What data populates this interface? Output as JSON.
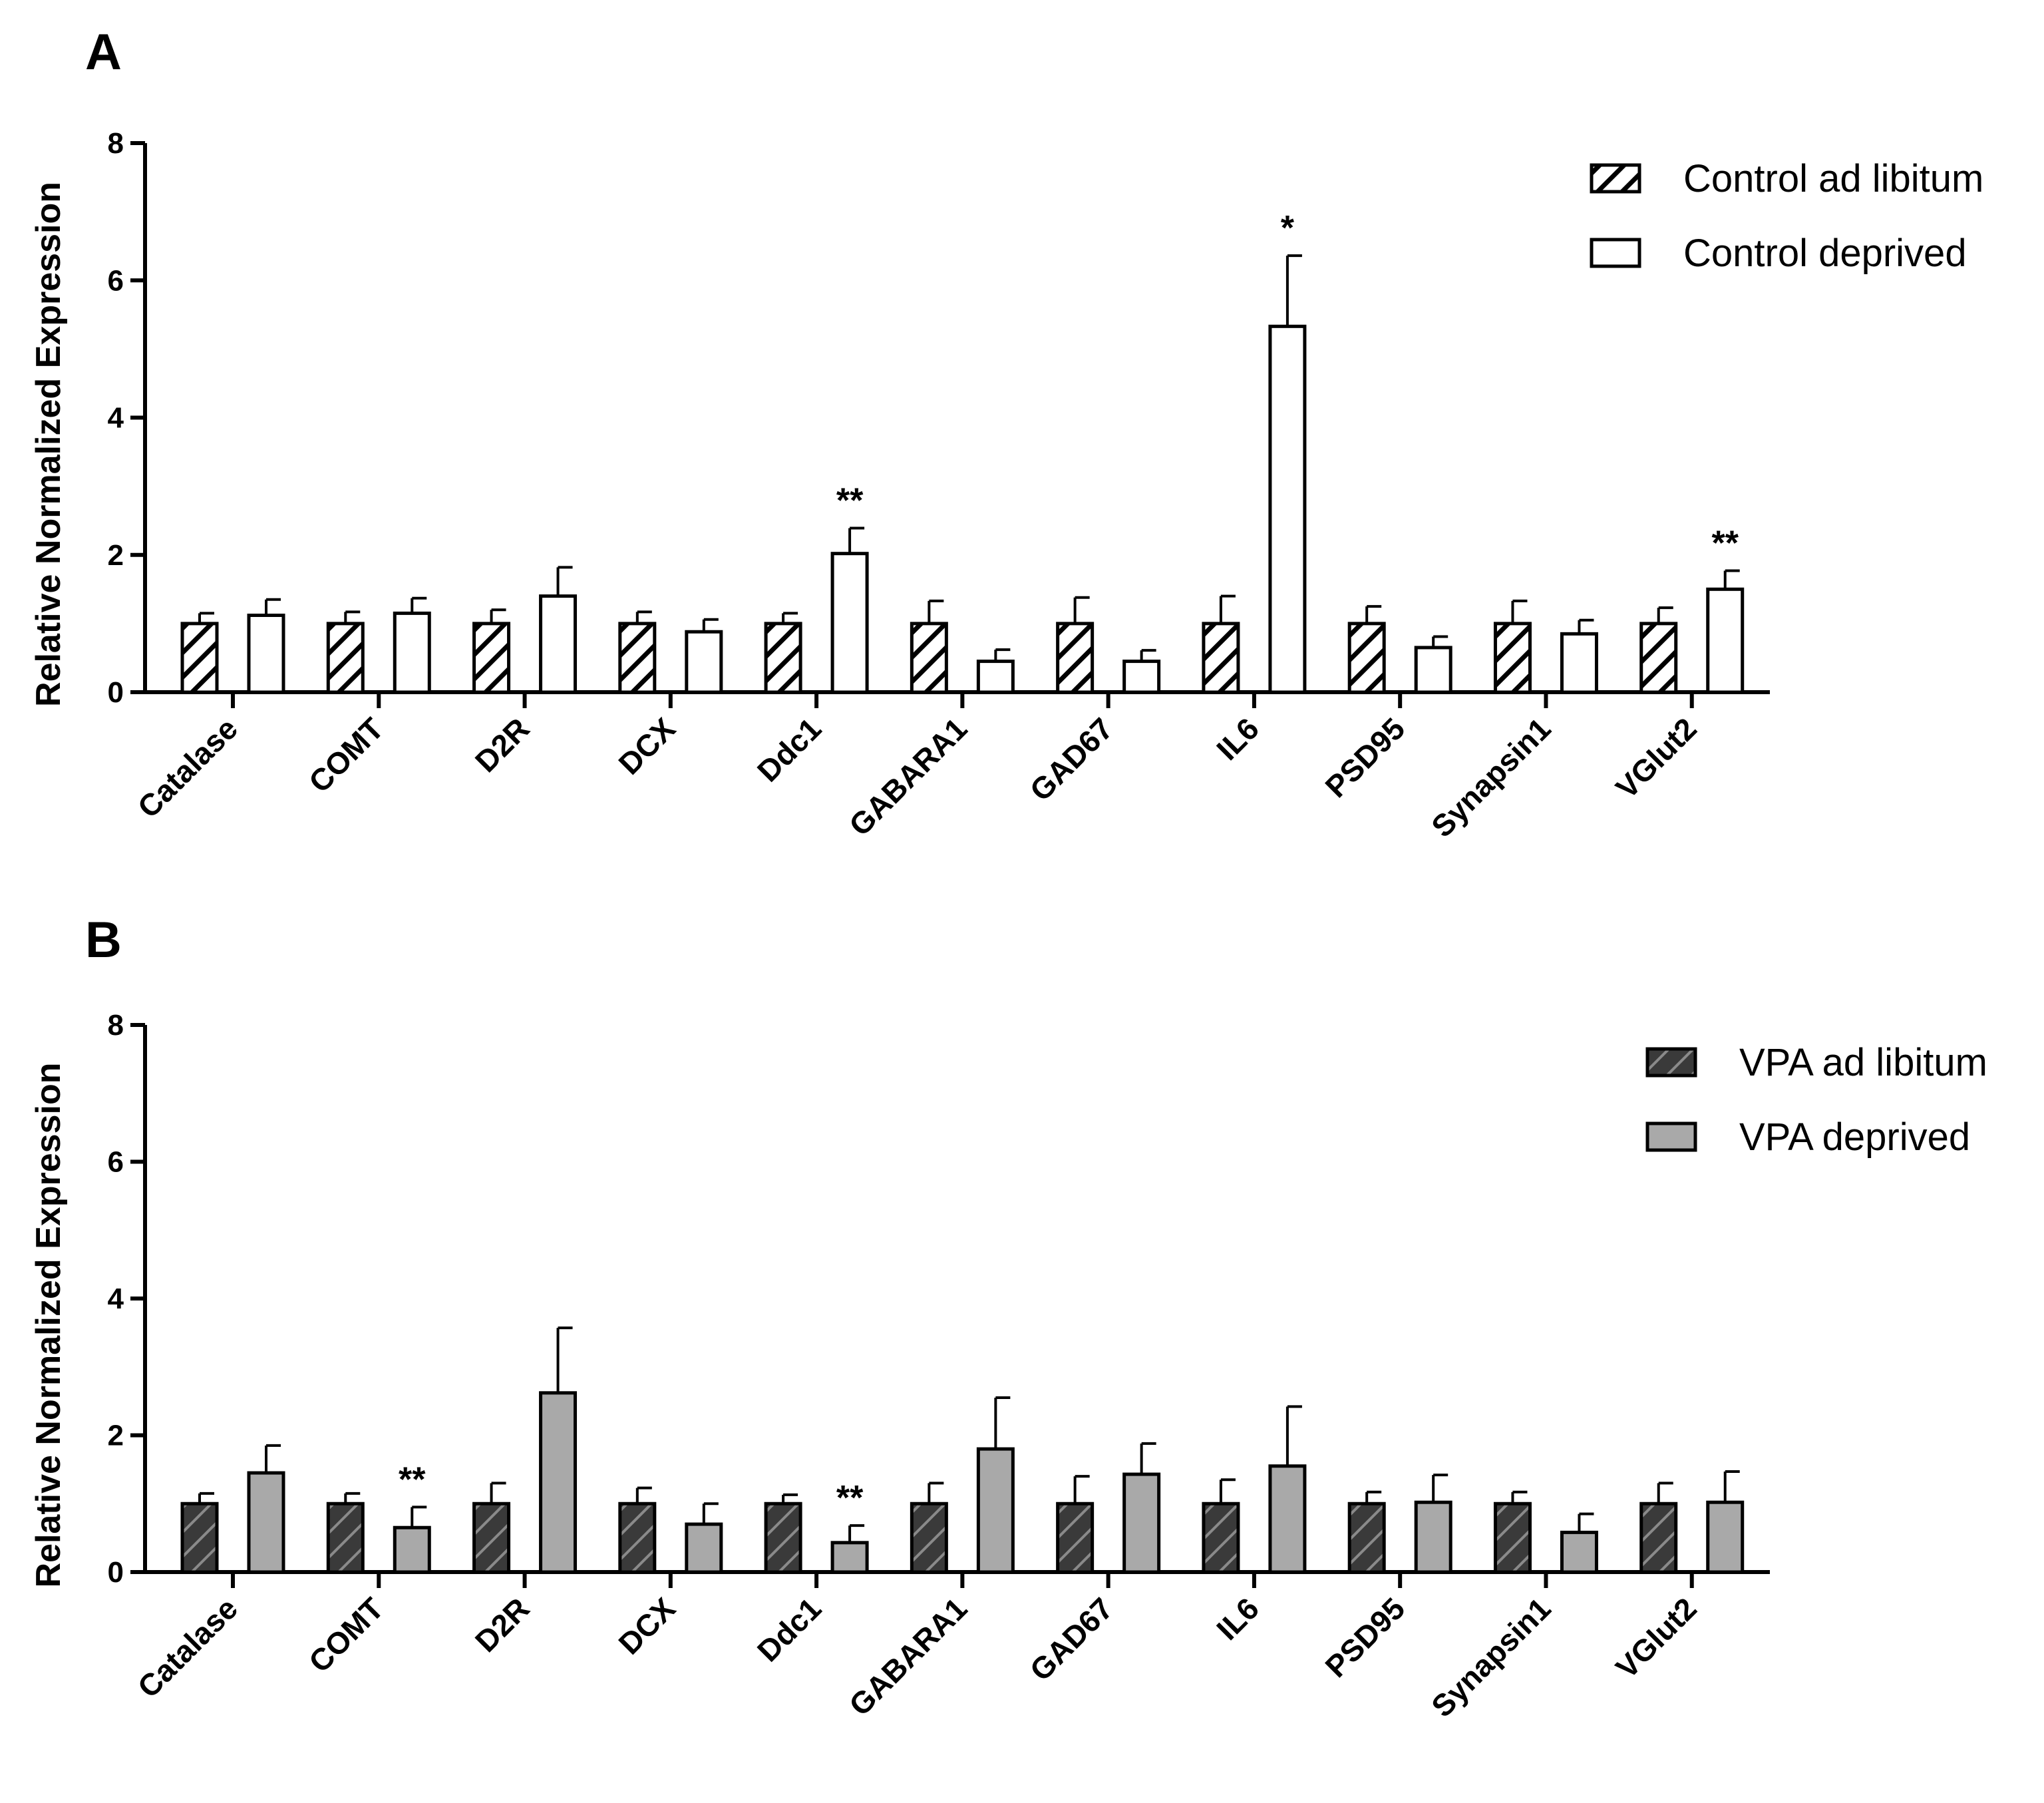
{
  "figure": {
    "panels": [
      "A",
      "B"
    ]
  },
  "colors": {
    "axis": "#000000",
    "control_ad_libitum_fill": "#ffffff",
    "control_deprived_fill": "#ffffff",
    "vpa_ad_libitum_fill": "#3a3a3a",
    "vpa_deprived_fill": "#a9a9a9",
    "hatch_stroke_light": "#000000",
    "hatch_stroke_dark": "#8a8a8a"
  },
  "chart_data": [
    {
      "panel": "A",
      "type": "bar",
      "title": "",
      "xlabel": "",
      "ylabel": "Relative Normalized Expression",
      "ylim": [
        0,
        8
      ],
      "yticks": [
        "0",
        "2",
        "4",
        "6",
        "8"
      ],
      "legend_position": "top-right",
      "categories": [
        "Catalase",
        "COMT",
        "D2R",
        "DCX",
        "Ddc1",
        "GABARA1",
        "GAD67",
        "IL6",
        "PSD95",
        "Synapsin1",
        "VGlut2"
      ],
      "series": [
        {
          "name": "Control ad libitum",
          "pattern": "hatched-light",
          "values": [
            1.0,
            1.0,
            1.0,
            1.0,
            1.0,
            1.0,
            1.0,
            1.0,
            1.0,
            1.0,
            1.0
          ],
          "errors": [
            0.15,
            0.17,
            0.2,
            0.17,
            0.15,
            0.33,
            0.38,
            0.4,
            0.25,
            0.33,
            0.23
          ]
        },
        {
          "name": "Control deprived",
          "pattern": "open",
          "values": [
            1.12,
            1.15,
            1.4,
            0.88,
            2.02,
            0.45,
            0.45,
            5.33,
            0.65,
            0.85,
            1.5
          ],
          "errors": [
            0.23,
            0.22,
            0.42,
            0.18,
            0.37,
            0.17,
            0.16,
            1.03,
            0.16,
            0.2,
            0.27
          ]
        }
      ],
      "significance": [
        {
          "category": "Ddc1",
          "label": "**"
        },
        {
          "category": "IL6",
          "label": "*"
        },
        {
          "category": "VGlut2",
          "label": "**"
        }
      ]
    },
    {
      "panel": "B",
      "type": "bar",
      "title": "",
      "xlabel": "",
      "ylabel": "Relative Normalized Expression",
      "ylim": [
        0,
        8
      ],
      "yticks": [
        "0",
        "2",
        "4",
        "6",
        "8"
      ],
      "legend_position": "top-right",
      "categories": [
        "Catalase",
        "COMT",
        "D2R",
        "DCX",
        "Ddc1",
        "GABARA1",
        "GAD67",
        "IL6",
        "PSD95",
        "Synapsin1",
        "VGlut2"
      ],
      "series": [
        {
          "name": "VPA ad libitum",
          "pattern": "hatched-dark",
          "values": [
            1.0,
            1.0,
            1.0,
            1.0,
            1.0,
            1.0,
            1.0,
            1.0,
            1.0,
            1.0,
            1.0
          ],
          "errors": [
            0.15,
            0.15,
            0.3,
            0.23,
            0.13,
            0.3,
            0.4,
            0.35,
            0.17,
            0.17,
            0.3
          ]
        },
        {
          "name": "VPA deprived",
          "pattern": "grey",
          "values": [
            1.45,
            0.65,
            2.62,
            0.7,
            0.43,
            1.8,
            1.43,
            1.55,
            1.02,
            0.58,
            1.02
          ],
          "errors": [
            0.4,
            0.3,
            0.95,
            0.3,
            0.25,
            0.75,
            0.45,
            0.87,
            0.4,
            0.27,
            0.45
          ]
        }
      ],
      "significance": [
        {
          "category": "COMT",
          "label": "**"
        },
        {
          "category": "Ddc1",
          "label": "**"
        }
      ]
    }
  ]
}
